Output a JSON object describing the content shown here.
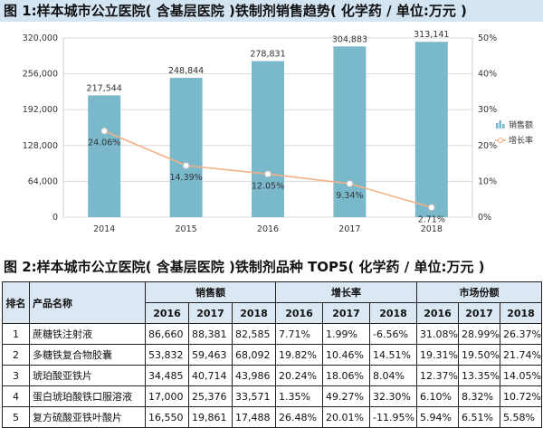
{
  "figure1": {
    "title": "图 1:样本城市公立医院( 含基层医院 )铁制剂销售趋势( 化学药 / 单位:万元 )"
  },
  "chart_data": {
    "type": "bar",
    "title": "图 1:样本城市公立医院( 含基层医院 )铁制剂销售趋势( 化学药 / 单位:万元 )",
    "categories": [
      "2014",
      "2015",
      "2016",
      "2017",
      "2018"
    ],
    "series": [
      {
        "name": "销售额",
        "type": "bar",
        "axis": "left",
        "color": "#7ab8cc",
        "values": [
          217544,
          248844,
          278831,
          304883,
          313141
        ],
        "labels": [
          "217,544",
          "248,844",
          "278,831",
          "304,883",
          "313,141"
        ]
      },
      {
        "name": "增长率",
        "type": "line",
        "axis": "right",
        "color": "#f4b183",
        "values": [
          24.06,
          14.39,
          12.05,
          9.34,
          2.71
        ],
        "labels": [
          "24.06%",
          "14.39%",
          "12.05%",
          "9.34%",
          "2.71%"
        ]
      }
    ],
    "ylim_left": [
      0,
      320000
    ],
    "yticks_left": [
      "0",
      "64,000",
      "128,000",
      "192,000",
      "256,000",
      "320,000"
    ],
    "ylim_right": [
      0,
      50
    ],
    "yticks_right": [
      "0%",
      "10%",
      "20%",
      "30%",
      "40%",
      "50%"
    ],
    "grid": true,
    "legend": "right"
  },
  "figure2": {
    "title": "图 2:样本城市公立医院( 含基层医院 )铁制剂品种 TOP5( 化学药 / 单位:万元 )",
    "headers": {
      "rank": "排名",
      "name": "产品名称",
      "sales": "销售额",
      "growth": "增长率",
      "share": "市场份额",
      "years": [
        "2016",
        "2017",
        "2018"
      ]
    },
    "rows": [
      {
        "rank": "1",
        "name": "蔗糖铁注射液",
        "sales": [
          "86,660",
          "88,381",
          "82,585"
        ],
        "growth": [
          "7.71%",
          "1.99%",
          "-6.56%"
        ],
        "share": [
          "31.08%",
          "28.99%",
          "26.37%"
        ]
      },
      {
        "rank": "2",
        "name": "多糖铁复合物胶囊",
        "sales": [
          "53,832",
          "59,463",
          "68,092"
        ],
        "growth": [
          "19.82%",
          "10.46%",
          "14.51%"
        ],
        "share": [
          "19.31%",
          "19.50%",
          "21.74%"
        ]
      },
      {
        "rank": "3",
        "name": "琥珀酸亚铁片",
        "sales": [
          "34,485",
          "40,714",
          "43,986"
        ],
        "growth": [
          "20.24%",
          "18.06%",
          "8.04%"
        ],
        "share": [
          "12.37%",
          "13.35%",
          "14.05%"
        ]
      },
      {
        "rank": "4",
        "name": "蛋白琥珀酸铁口服溶液",
        "sales": [
          "17,000",
          "25,376",
          "33,571"
        ],
        "growth": [
          "1.35%",
          "49.27%",
          "32.30%"
        ],
        "share": [
          "6.10%",
          "8.32%",
          "10.72%"
        ]
      },
      {
        "rank": "5",
        "name": "复方硫酸亚铁叶酸片",
        "sales": [
          "16,550",
          "19,861",
          "17,488"
        ],
        "growth": [
          "26.48%",
          "20.01%",
          "-11.95%"
        ],
        "share": [
          "5.94%",
          "6.51%",
          "5.58%"
        ]
      }
    ]
  }
}
